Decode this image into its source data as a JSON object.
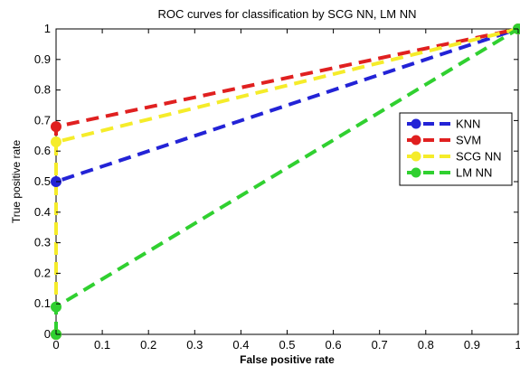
{
  "chart_data": {
    "type": "line",
    "title": "ROC curves for classification by SCG NN, LM NN",
    "xlabel": "False positive rate",
    "ylabel": "True positive rate",
    "xlim": [
      0,
      1
    ],
    "ylim": [
      0,
      1
    ],
    "xticks": [
      "0",
      "0.1",
      "0.2",
      "0.3",
      "0.4",
      "0.5",
      "0.6",
      "0.7",
      "0.8",
      "0.9",
      "1"
    ],
    "yticks": [
      "0",
      "0.1",
      "0.2",
      "0.3",
      "0.4",
      "0.5",
      "0.6",
      "0.7",
      "0.8",
      "0.9",
      "1"
    ],
    "grid": false,
    "legend_position": "right",
    "series": [
      {
        "name": "KNN",
        "color": "#2323d6",
        "x": [
          0,
          0,
          1
        ],
        "y": [
          0,
          0.5,
          1
        ]
      },
      {
        "name": "SVM",
        "color": "#e02020",
        "x": [
          0,
          0,
          1
        ],
        "y": [
          0,
          0.68,
          1
        ]
      },
      {
        "name": "SCG NN",
        "color": "#f5ec2a",
        "x": [
          0,
          0,
          1
        ],
        "y": [
          0,
          0.63,
          1
        ]
      },
      {
        "name": "LM NN",
        "color": "#30d030",
        "x": [
          0,
          0,
          1
        ],
        "y": [
          0,
          0.09,
          1
        ]
      }
    ]
  }
}
